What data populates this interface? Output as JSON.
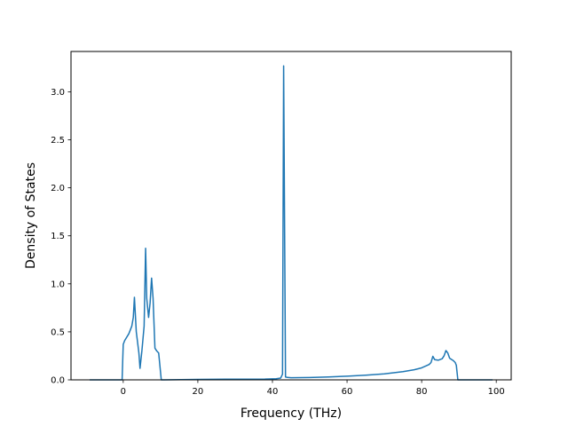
{
  "chart_data": {
    "type": "line",
    "title": "",
    "xlabel": "Frequency (THz)",
    "ylabel": "Density of States",
    "xlim": [
      -14,
      104
    ],
    "ylim": [
      0,
      3.42
    ],
    "xticks": [
      0,
      20,
      40,
      60,
      80,
      100
    ],
    "xtick_labels": [
      "0",
      "20",
      "40",
      "60",
      "80",
      "100"
    ],
    "yticks": [
      0.0,
      0.5,
      1.0,
      1.5,
      2.0,
      2.5,
      3.0
    ],
    "ytick_labels": [
      "0.0",
      "0.5",
      "1.0",
      "1.5",
      "2.0",
      "2.5",
      "3.0"
    ],
    "grid": false,
    "line_color": "#1f77b4",
    "series": [
      {
        "x": [
          -9,
          -0.3,
          0,
          0.4,
          1.5,
          2.3,
          2.7,
          3.0,
          3.5,
          4.2,
          4.5,
          5.0,
          5.6,
          6.0,
          6.3,
          6.8,
          7.2,
          7.6,
          8.0,
          8.5,
          9.0,
          9.5,
          10.2,
          10.5,
          11,
          20,
          30,
          38,
          41,
          42.2,
          42.7,
          43.0,
          43.5,
          44,
          45,
          50,
          55,
          60,
          65,
          70,
          75,
          78,
          80,
          82,
          82.5,
          83.0,
          83.5,
          84.5,
          85.5,
          86.0,
          86.5,
          87.0,
          87.5,
          88.5,
          89.0,
          89.3,
          89.7,
          90,
          99
        ],
        "y": [
          0,
          0,
          0.37,
          0.41,
          0.48,
          0.56,
          0.65,
          0.86,
          0.5,
          0.28,
          0.12,
          0.3,
          0.56,
          1.37,
          0.85,
          0.65,
          0.8,
          1.06,
          0.85,
          0.33,
          0.3,
          0.28,
          0.0,
          0.0,
          0.0,
          0.005,
          0.007,
          0.008,
          0.012,
          0.018,
          0.06,
          3.27,
          0.03,
          0.025,
          0.022,
          0.024,
          0.03,
          0.038,
          0.048,
          0.062,
          0.085,
          0.105,
          0.125,
          0.16,
          0.18,
          0.245,
          0.21,
          0.205,
          0.22,
          0.25,
          0.305,
          0.28,
          0.225,
          0.2,
          0.18,
          0.15,
          0.0,
          0.0,
          0.0
        ]
      }
    ]
  }
}
